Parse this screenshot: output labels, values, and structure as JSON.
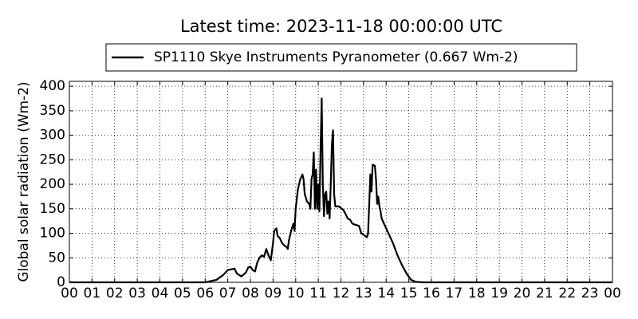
{
  "chart_data": {
    "type": "line",
    "title": "Latest time: 2023-11-18 00:00:00 UTC",
    "y_label": "Global solar radiation (Wm-2)",
    "grid": true,
    "legend_position": "top",
    "xlim": [
      0,
      24
    ],
    "ylim": [
      0,
      410
    ],
    "xticks": [
      {
        "value": 0,
        "label": "00"
      },
      {
        "value": 1,
        "label": "01"
      },
      {
        "value": 2,
        "label": "02"
      },
      {
        "value": 3,
        "label": "03"
      },
      {
        "value": 4,
        "label": "04"
      },
      {
        "value": 5,
        "label": "05"
      },
      {
        "value": 6,
        "label": "06"
      },
      {
        "value": 7,
        "label": "07"
      },
      {
        "value": 8,
        "label": "08"
      },
      {
        "value": 9,
        "label": "09"
      },
      {
        "value": 10,
        "label": "10"
      },
      {
        "value": 11,
        "label": "11"
      },
      {
        "value": 12,
        "label": "12"
      },
      {
        "value": 13,
        "label": "13"
      },
      {
        "value": 14,
        "label": "14"
      },
      {
        "value": 15,
        "label": "15"
      },
      {
        "value": 16,
        "label": "16"
      },
      {
        "value": 17,
        "label": "17"
      },
      {
        "value": 18,
        "label": "18"
      },
      {
        "value": 19,
        "label": "19"
      },
      {
        "value": 20,
        "label": "20"
      },
      {
        "value": 21,
        "label": "21"
      },
      {
        "value": 22,
        "label": "22"
      },
      {
        "value": 23,
        "label": "23"
      },
      {
        "value": 24,
        "label": "00"
      }
    ],
    "yticks": [
      0,
      50,
      100,
      150,
      200,
      250,
      300,
      350,
      400
    ],
    "x": [
      0,
      6.0,
      6.5,
      6.8,
      7.0,
      7.2,
      7.3,
      7.4,
      7.6,
      7.8,
      7.9,
      8.0,
      8.1,
      8.2,
      8.3,
      8.4,
      8.5,
      8.6,
      8.7,
      8.8,
      8.9,
      9.0,
      9.05,
      9.15,
      9.2,
      9.3,
      9.4,
      9.5,
      9.6,
      9.65,
      9.7,
      9.8,
      9.9,
      9.95,
      10.0,
      10.1,
      10.2,
      10.3,
      10.35,
      10.4,
      10.5,
      10.6,
      10.65,
      10.7,
      10.75,
      10.8,
      10.85,
      10.9,
      10.95,
      11.0,
      11.05,
      11.1,
      11.15,
      11.2,
      11.25,
      11.3,
      11.35,
      11.4,
      11.45,
      11.5,
      11.55,
      11.6,
      11.65,
      11.7,
      11.75,
      11.9,
      12.1,
      12.2,
      12.3,
      12.4,
      12.5,
      12.6,
      12.8,
      12.9,
      13.0,
      13.15,
      13.2,
      13.3,
      13.35,
      13.4,
      13.5,
      13.55,
      13.6,
      13.65,
      13.7,
      13.75,
      13.8,
      13.9,
      14.0,
      14.1,
      14.3,
      14.5,
      14.7,
      14.9,
      15.1,
      15.3,
      15.6,
      24
    ],
    "series": [
      {
        "name": "SP1110 Skye Instruments Pyranometer (0.667 Wm-2)",
        "color": "#000000",
        "values": [
          0,
          0,
          5,
          15,
          25,
          27,
          28,
          18,
          12,
          20,
          30,
          32,
          25,
          22,
          40,
          50,
          55,
          52,
          68,
          55,
          45,
          80,
          105,
          110,
          95,
          90,
          80,
          75,
          72,
          68,
          85,
          105,
          120,
          105,
          150,
          190,
          210,
          220,
          210,
          180,
          165,
          160,
          150,
          210,
          220,
          265,
          150,
          230,
          150,
          200,
          145,
          270,
          375,
          200,
          135,
          180,
          185,
          140,
          165,
          130,
          200,
          280,
          310,
          180,
          155,
          155,
          148,
          140,
          130,
          128,
          120,
          118,
          115,
          100,
          97,
          92,
          100,
          220,
          185,
          240,
          238,
          210,
          160,
          175,
          155,
          145,
          130,
          120,
          110,
          100,
          80,
          55,
          35,
          18,
          5,
          1,
          0,
          0
        ]
      }
    ]
  }
}
